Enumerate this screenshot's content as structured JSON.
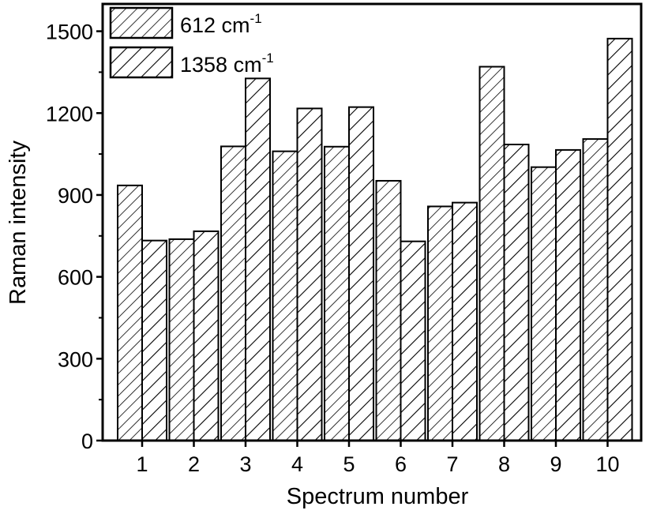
{
  "chart_data": {
    "type": "bar",
    "categories": [
      "1",
      "2",
      "3",
      "4",
      "5",
      "6",
      "7",
      "8",
      "9",
      "10"
    ],
    "series": [
      {
        "name": "612 cm-1",
        "name_base": "612 cm",
        "name_sup": "-1",
        "values": [
          935,
          738,
          1078,
          1060,
          1077,
          952,
          858,
          1370,
          1002,
          1105
        ]
      },
      {
        "name": "1358 cm-1",
        "name_base": "1358 cm",
        "name_sup": "-1",
        "values": [
          733,
          767,
          1327,
          1217,
          1222,
          730,
          872,
          1085,
          1065,
          1473
        ]
      }
    ],
    "xlabel": "Spectrum number",
    "ylabel": "Raman intensity",
    "ylim": [
      0,
      1600
    ],
    "yticks": [
      0,
      300,
      600,
      900,
      1200,
      1500
    ],
    "grid": false,
    "legend": "top-left",
    "hatch": [
      "forward-diagonal-fine",
      "forward-diagonal-coarse"
    ],
    "colors": {
      "bar_fill": "#ffffff",
      "stroke": "#000000"
    }
  }
}
